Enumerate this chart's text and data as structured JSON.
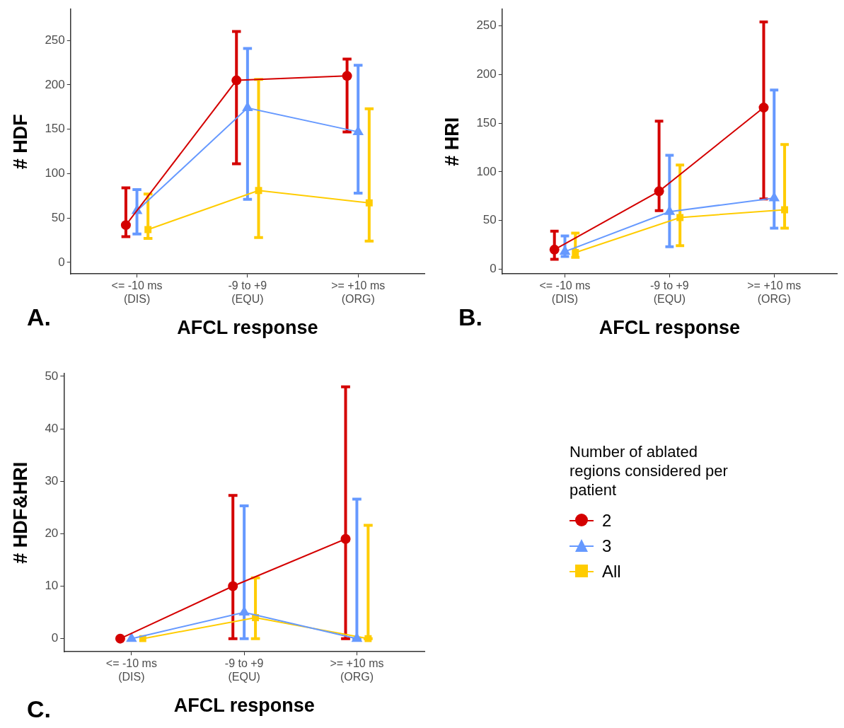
{
  "chart_data": [
    {
      "type": "line",
      "categories": [
        "<= -10 ms\n(DIS)",
        "-9 to +9\n(EQU)",
        ">= +10 ms\n(ORG)"
      ],
      "xlabel": "AFCL response",
      "ylabel": "# HDF",
      "ylim": [
        -13,
        285
      ],
      "yticks": [
        0,
        50,
        100,
        150,
        200,
        250
      ],
      "annotations": [
        "A."
      ],
      "series": [
        {
          "color": "#d40000",
          "marker": "circle",
          "values": [
            42,
            205,
            210
          ],
          "errors": [
            [
              29,
              84
            ],
            [
              111,
              260
            ],
            [
              147,
              229
            ]
          ]
        },
        {
          "color": "#6699ff",
          "marker": "triangle",
          "values": [
            58,
            174,
            147
          ],
          "errors": [
            [
              32,
              82
            ],
            [
              71,
              241
            ],
            [
              78,
              222
            ]
          ]
        },
        {
          "color": "#ffcc00",
          "marker": "square",
          "values": [
            37,
            81,
            67
          ],
          "errors": [
            [
              27,
              77
            ],
            [
              28,
              206
            ],
            [
              24,
              173
            ]
          ]
        }
      ]
    },
    {
      "type": "line",
      "categories": [
        "<= -10 ms\n(DIS)",
        "-9 to +9\n(EQU)",
        ">= +10 ms\n(ORG)"
      ],
      "xlabel": "AFCL response",
      "ylabel": "# HRI",
      "ylim": [
        -5,
        267
      ],
      "yticks": [
        0,
        50,
        100,
        150,
        200,
        250
      ],
      "annotations": [
        "B."
      ],
      "series": [
        {
          "color": "#d40000",
          "marker": "circle",
          "values": [
            20,
            80,
            166
          ],
          "errors": [
            [
              10,
              39
            ],
            [
              60,
              152
            ],
            [
              72,
              254
            ]
          ]
        },
        {
          "color": "#6699ff",
          "marker": "triangle",
          "values": [
            18,
            59,
            73
          ],
          "errors": [
            [
              13,
              34
            ],
            [
              23,
              117
            ],
            [
              42,
              184
            ]
          ]
        },
        {
          "color": "#ffcc00",
          "marker": "square",
          "values": [
            17,
            53,
            61
          ],
          "errors": [
            [
              12,
              37
            ],
            [
              24,
              107
            ],
            [
              42,
              128
            ]
          ]
        }
      ]
    },
    {
      "type": "line",
      "categories": [
        "<= -10 ms\n(DIS)",
        "-9 to +9\n(EQU)",
        ">= +10 ms\n(ORG)"
      ],
      "xlabel": "AFCL response",
      "ylabel": "# HDF&HRI",
      "ylim": [
        -2.5,
        50.5
      ],
      "yticks": [
        0,
        10,
        20,
        30,
        40,
        50
      ],
      "annotations": [
        "C."
      ],
      "legend": "right",
      "legend_title": "Number of ablated regions considered per patient",
      "series": [
        {
          "name": "2",
          "color": "#d40000",
          "marker": "circle",
          "values": [
            0,
            10,
            19
          ],
          "errors": [
            null,
            [
              0,
              27.3
            ],
            [
              0,
              48
            ]
          ]
        },
        {
          "name": "3",
          "color": "#6699ff",
          "marker": "triangle",
          "values": [
            0,
            5,
            0
          ],
          "errors": [
            null,
            [
              0,
              25.3
            ],
            [
              0,
              26.6
            ]
          ]
        },
        {
          "name": "All",
          "color": "#ffcc00",
          "marker": "square",
          "values": [
            0,
            4,
            0
          ],
          "errors": [
            null,
            [
              0,
              11.6
            ],
            [
              0,
              21.6
            ]
          ]
        }
      ]
    }
  ]
}
